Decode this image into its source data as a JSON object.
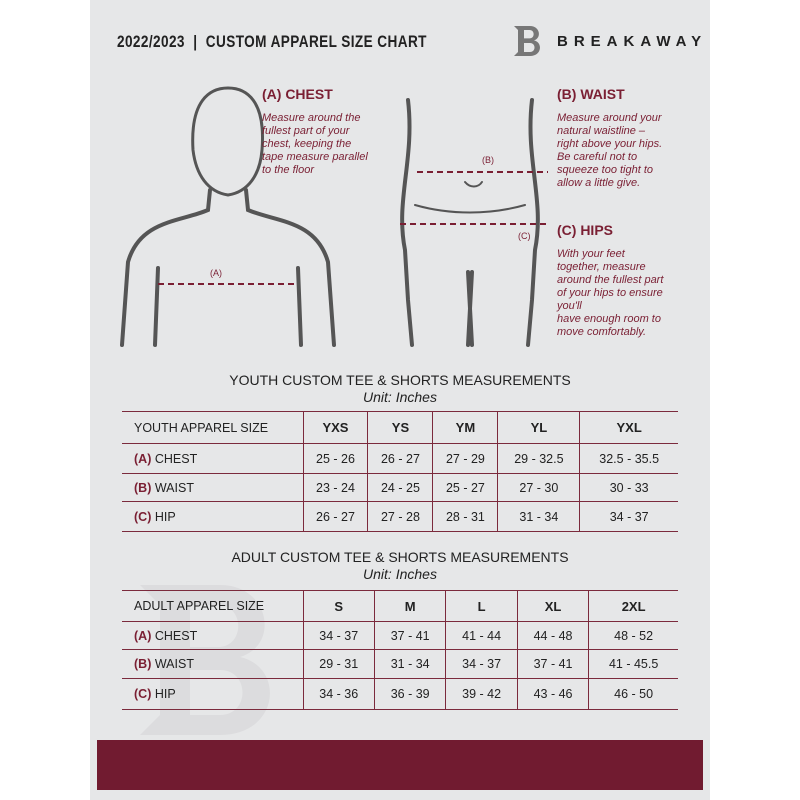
{
  "header": {
    "title": "2022/2023  |  CUSTOM APPAREL SIZE CHART",
    "brand": "BREAKAWAY",
    "logo_letter": "B"
  },
  "guide": {
    "chest": {
      "heading": "(A) CHEST",
      "label": "(A)",
      "lines": [
        "Measure around the",
        "fullest part of your",
        "chest, keeping the",
        "tape measure parallel",
        "to the floor"
      ]
    },
    "waist": {
      "heading": "(B) WAIST",
      "label": "(B)",
      "lines": [
        "Measure around your",
        "natural waistline –",
        "right above your hips.",
        "Be careful not to",
        "squeeze too tight to",
        "allow a little give."
      ]
    },
    "hips": {
      "heading": "(C) HIPS",
      "label": "(C)",
      "lines": [
        "With your feet",
        "together, measure",
        "around the fullest part",
        "of your hips to ensure",
        "you'll",
        "have enough room to",
        "move comfortably."
      ]
    }
  },
  "youth": {
    "title": "YOUTH CUSTOM TEE & SHORTS MEASUREMENTS",
    "unit": "Unit: Inches",
    "size_header": "YOUTH APPAREL SIZE",
    "sizes": [
      "YXS",
      "YS",
      "YM",
      "YL",
      "YXL"
    ],
    "rows": [
      {
        "letter": "(A)",
        "name": "CHEST",
        "values": [
          "25 - 26",
          "26 - 27",
          "27 - 29",
          "29 - 32.5",
          "32.5 - 35.5"
        ]
      },
      {
        "letter": "(B)",
        "name": "WAIST",
        "values": [
          "23 - 24",
          "24 - 25",
          "25 - 27",
          "27 - 30",
          "30 - 33"
        ]
      },
      {
        "letter": "(C)",
        "name": "HIP",
        "values": [
          "26 - 27",
          "27 - 28",
          "28 - 31",
          "31 - 34",
          "34 - 37"
        ]
      }
    ]
  },
  "adult": {
    "title": "ADULT CUSTOM TEE & SHORTS MEASUREMENTS",
    "unit": "Unit: Inches",
    "size_header": "ADULT APPAREL SIZE",
    "sizes": [
      "S",
      "M",
      "L",
      "XL",
      "2XL"
    ],
    "rows": [
      {
        "letter": "(A)",
        "name": "CHEST",
        "values": [
          "34 - 37",
          "37 - 41",
          "41 - 44",
          "44 - 48",
          "48 - 52"
        ]
      },
      {
        "letter": "(B)",
        "name": "WAIST",
        "values": [
          "29 - 31",
          "31 - 34",
          "34 - 37",
          "37 - 41",
          "41 - 45.5"
        ]
      },
      {
        "letter": "(C)",
        "name": "HIP",
        "values": [
          "34 - 36",
          "36 - 39",
          "39 - 42",
          "43 - 46",
          "46 - 50"
        ]
      }
    ]
  },
  "colors": {
    "accent": "#7a1f33",
    "panel": "#e6e7e8",
    "band": "#711b30"
  }
}
